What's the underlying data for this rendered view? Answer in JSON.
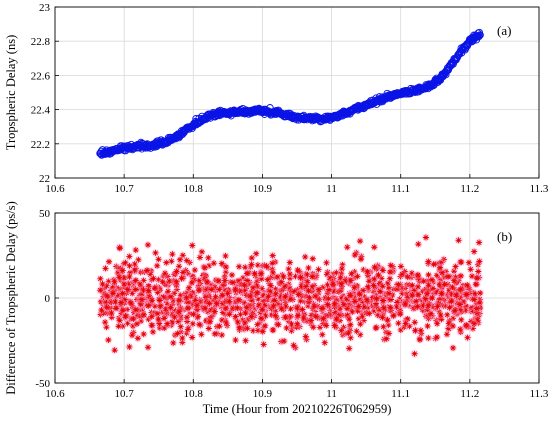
{
  "chart_data": [
    {
      "type": "scatter",
      "panel_label": "(a)",
      "xlabel": "",
      "ylabel": "Tropspheric Delay (ns)",
      "xlim": [
        10.6,
        11.3
      ],
      "ylim": [
        22,
        23
      ],
      "xticks": [
        "10.6",
        "10.7",
        "10.8",
        "10.9",
        "11",
        "11.1",
        "11.2",
        "11.3"
      ],
      "yticks": [
        "22",
        "22.2",
        "22.4",
        "22.6",
        "22.8",
        "23"
      ],
      "grid": true,
      "marker": "open circle",
      "color": "#0a14e6",
      "series": [
        {
          "x": [
            10.665,
            10.68,
            10.7,
            10.72,
            10.74,
            10.76,
            10.78,
            10.8,
            10.82,
            10.84,
            10.86,
            10.88,
            10.9,
            10.92,
            10.94,
            10.96,
            10.98,
            11.0,
            11.02,
            11.04,
            11.06,
            11.08,
            11.1,
            11.12,
            11.14,
            11.16,
            11.18,
            11.2,
            11.215
          ],
          "y": [
            22.14,
            22.155,
            22.175,
            22.185,
            22.19,
            22.21,
            22.25,
            22.31,
            22.36,
            22.38,
            22.385,
            22.39,
            22.395,
            22.385,
            22.36,
            22.35,
            22.345,
            22.355,
            22.38,
            22.41,
            22.44,
            22.475,
            22.495,
            22.51,
            22.535,
            22.59,
            22.7,
            22.8,
            22.84
          ]
        }
      ]
    },
    {
      "type": "scatter",
      "panel_label": "(b)",
      "xlabel": "Time (Hour from 20210226T062959)",
      "ylabel": "Difference of Tropspheric Delay  (ps/s)",
      "xlim": [
        10.6,
        11.3
      ],
      "ylim": [
        -50,
        50
      ],
      "xticks": [
        "10.6",
        "10.7",
        "10.8",
        "10.9",
        "11",
        "11.1",
        "11.2",
        "11.3"
      ],
      "yticks": [
        "-50",
        "0",
        "50"
      ],
      "grid": true,
      "marker": "asterisk",
      "color": "#e60000",
      "edge_color": "#8a5a00",
      "x_range": [
        10.665,
        11.215
      ],
      "y_center": 0,
      "y_spread_std": 11,
      "y_extremes": [
        -43,
        47
      ],
      "point_count_approx": 1500
    }
  ]
}
